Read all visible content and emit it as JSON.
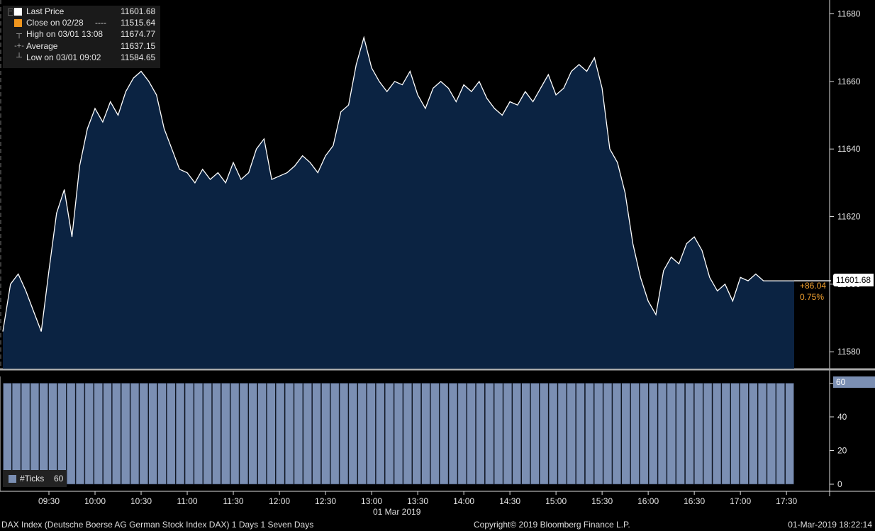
{
  "legend": {
    "items": [
      {
        "label": "Last Price",
        "value": "11601.68",
        "swatch": "#ffffff"
      },
      {
        "label": "Close on 02/28",
        "value": "11515.64",
        "swatch": "#f0961e",
        "dash": "----"
      },
      {
        "label": "High on 03/01 13:08",
        "value": "11674.77",
        "symbol": "high-marker-icon"
      },
      {
        "label": "Average",
        "value": "11637.15",
        "symbol": "average-marker-icon"
      },
      {
        "label": "Low on 03/01 09:02",
        "value": "11584.65",
        "symbol": "low-marker-icon"
      }
    ]
  },
  "last_tag": "11601.68",
  "change": {
    "abs": "+86.04",
    "pct": "0.75%"
  },
  "ticks_legend": {
    "label": "#Ticks",
    "value": "60"
  },
  "ticks_tag": "60",
  "date_label": "01 Mar 2019",
  "footer": {
    "left": "DAX Index (Deutsche Boerse AG German Stock Index DAX) 1 Days 1 Seven Days",
    "mid": "Copyright© 2019 Bloomberg Finance L.P.",
    "right": "01-Mar-2019 18:22:14"
  },
  "colors": {
    "line": "#ffffff",
    "fill": "#0b2342",
    "bars": "#7b8fb3",
    "accent": "#f0a030"
  },
  "chart_data": [
    {
      "type": "area",
      "series": [
        {
          "name": "Last Price",
          "x": [
            "09:00",
            "09:05",
            "09:10",
            "09:15",
            "09:20",
            "09:25",
            "09:30",
            "09:35",
            "09:40",
            "09:45",
            "09:50",
            "09:55",
            "10:00",
            "10:05",
            "10:10",
            "10:15",
            "10:20",
            "10:25",
            "10:30",
            "10:35",
            "10:40",
            "10:45",
            "10:50",
            "10:55",
            "11:00",
            "11:05",
            "11:10",
            "11:15",
            "11:20",
            "11:25",
            "11:30",
            "11:35",
            "11:40",
            "11:45",
            "11:50",
            "11:55",
            "12:00",
            "12:05",
            "12:10",
            "12:15",
            "12:20",
            "12:25",
            "12:30",
            "12:35",
            "12:40",
            "12:45",
            "12:50",
            "12:55",
            "13:00",
            "13:05",
            "13:10",
            "13:15",
            "13:20",
            "13:25",
            "13:30",
            "13:35",
            "13:40",
            "13:45",
            "13:50",
            "13:55",
            "14:00",
            "14:05",
            "14:10",
            "14:15",
            "14:20",
            "14:25",
            "14:30",
            "14:35",
            "14:40",
            "14:45",
            "14:50",
            "14:55",
            "15:00",
            "15:05",
            "15:10",
            "15:15",
            "15:20",
            "15:25",
            "15:30",
            "15:35",
            "15:40",
            "15:45",
            "15:50",
            "15:55",
            "16:00",
            "16:05",
            "16:10",
            "16:15",
            "16:20",
            "16:25",
            "16:30",
            "16:35",
            "16:40",
            "16:45",
            "16:50",
            "16:55",
            "17:00",
            "17:05",
            "17:10",
            "17:15",
            "17:20",
            "17:25",
            "17:30",
            "17:35"
          ],
          "values": [
            11586,
            11600,
            11603,
            11598,
            11592,
            11586,
            11604,
            11621,
            11628,
            11614,
            11635,
            11646,
            11652,
            11648,
            11654,
            11650,
            11657,
            11661,
            11663,
            11660,
            11656,
            11646,
            11640,
            11634,
            11633,
            11630,
            11634,
            11631,
            11633,
            11630,
            11636,
            11631,
            11633,
            11640,
            11643,
            11631,
            11632,
            11633,
            11635,
            11638,
            11636,
            11633,
            11638,
            11641,
            11651,
            11653,
            11665,
            11673,
            11664,
            11660,
            11657,
            11660,
            11659,
            11663,
            11656,
            11652,
            11658,
            11660,
            11658,
            11654,
            11659,
            11657,
            11660,
            11655,
            11652,
            11650,
            11654,
            11653,
            11657,
            11654,
            11658,
            11662,
            11656,
            11658,
            11663,
            11665,
            11663,
            11667,
            11658,
            11640,
            11636,
            11627,
            11612,
            11602,
            11595,
            11591,
            11604,
            11608,
            11606,
            11612,
            11614,
            11610,
            11602,
            11598,
            11600,
            11595,
            11602,
            11601,
            11603,
            11601,
            11601,
            11601,
            11601,
            11601
          ]
        }
      ],
      "ylim": [
        11575,
        11682
      ],
      "yticks": [
        11580,
        11600,
        11620,
        11640,
        11660,
        11680
      ],
      "xticks": [
        "09:30",
        "10:00",
        "10:30",
        "11:00",
        "11:30",
        "12:00",
        "12:30",
        "13:00",
        "13:30",
        "14:00",
        "14:30",
        "15:00",
        "15:30",
        "16:00",
        "16:30",
        "17:00",
        "17:30"
      ],
      "xlabel": "01 Mar 2019",
      "reference_lines": [
        {
          "name": "Close on 02/28",
          "value": 11515.64
        }
      ],
      "grid": false,
      "legend_position": "top-left"
    },
    {
      "type": "bar",
      "series": [
        {
          "name": "#Ticks",
          "value_each_bar": 60,
          "bar_count": 87
        }
      ],
      "ylim": [
        0,
        64
      ],
      "yticks": [
        0,
        20,
        40,
        60
      ]
    }
  ]
}
